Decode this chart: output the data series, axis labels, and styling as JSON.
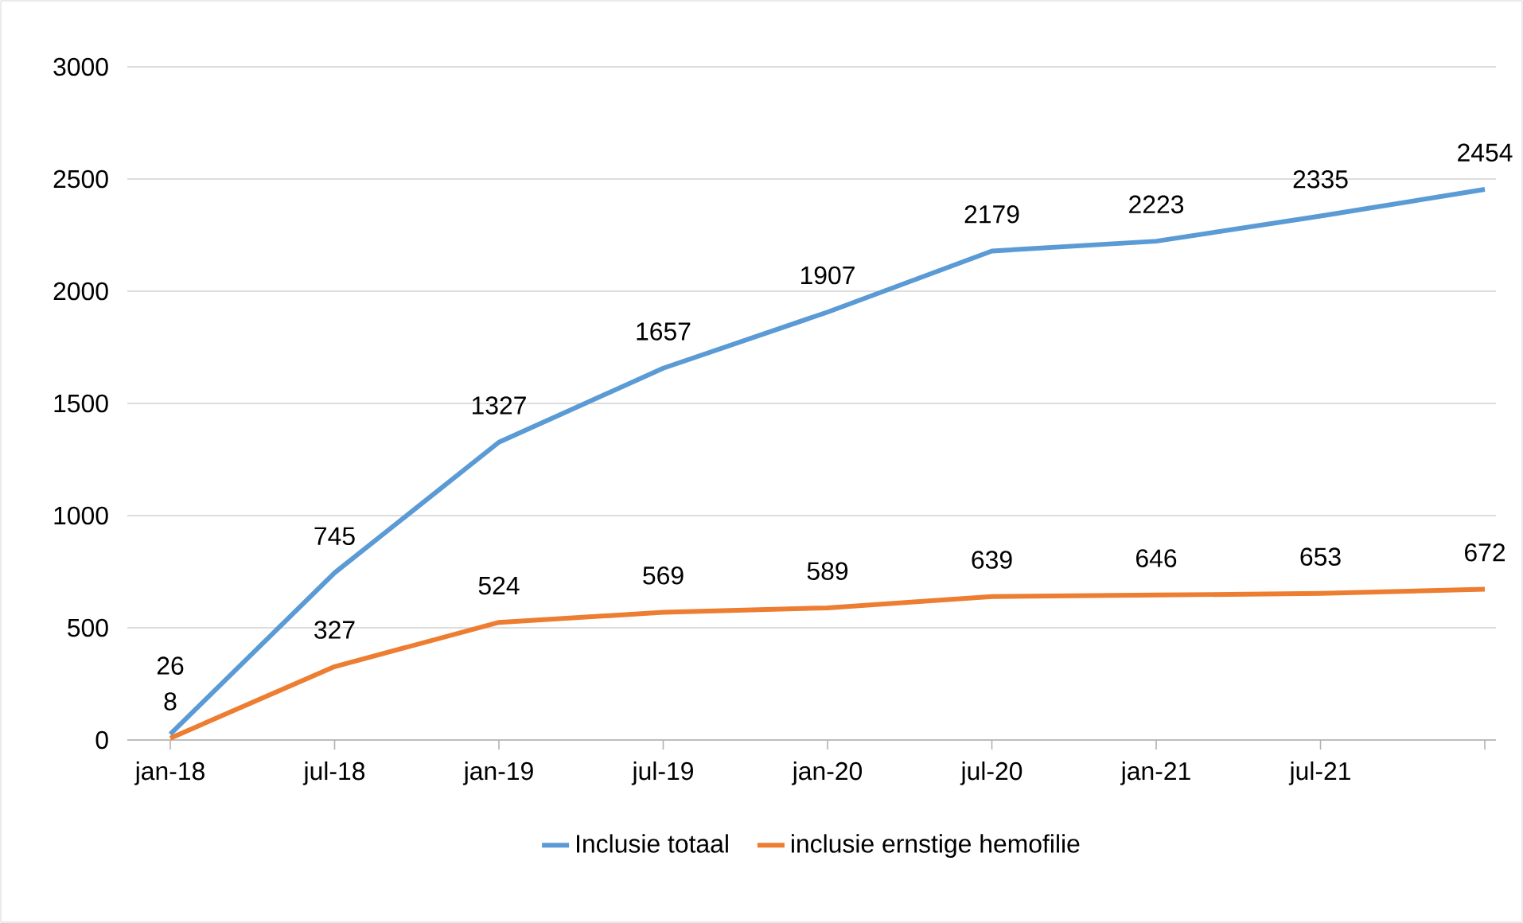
{
  "chart_data": {
    "type": "line",
    "categories": [
      "jan-18",
      "jul-18",
      "jan-19",
      "jul-19",
      "jan-20",
      "jul-20",
      "jan-21",
      "jul-21",
      null
    ],
    "series": [
      {
        "name": "Inclusie totaal",
        "color": "#5b9bd5",
        "values": [
          26,
          745,
          1327,
          1657,
          1907,
          2179,
          2223,
          2335,
          2454
        ]
      },
      {
        "name": "inclusie ernstige hemofilie",
        "color": "#ed7d31",
        "values": [
          8,
          327,
          524,
          569,
          589,
          639,
          646,
          653,
          672
        ]
      }
    ],
    "ylim": [
      0,
      3000
    ],
    "yticks": [
      0,
      500,
      1000,
      1500,
      2000,
      2500,
      3000
    ],
    "grid": "y",
    "legend": "bottom",
    "data_labels": true,
    "marker": "none",
    "line_style": "solid"
  }
}
